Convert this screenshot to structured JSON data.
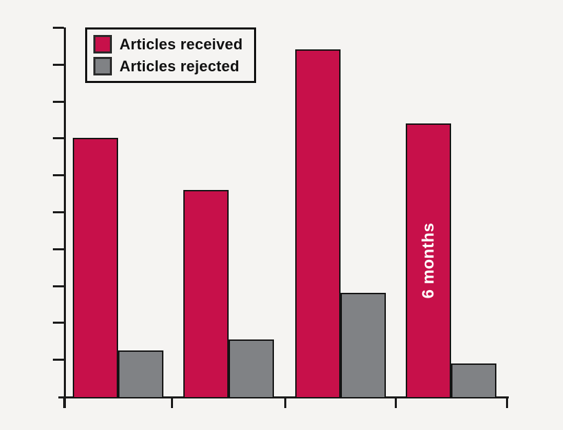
{
  "figure": {
    "background_color": "#f5f4f2",
    "axis_color": "#1a1a1a"
  },
  "chart_data": {
    "type": "bar",
    "title": "",
    "categories": [
      "",
      "",
      "",
      ""
    ],
    "series": [
      {
        "name": "Articles received",
        "color": "#c7104a",
        "values": [
          7.0,
          5.6,
          9.4,
          7.4
        ]
      },
      {
        "name": "Articles rejected",
        "color": "#808285",
        "values": [
          1.25,
          1.55,
          2.8,
          0.9
        ]
      }
    ],
    "y_axis": {
      "range_units": [
        0,
        10
      ],
      "tick_count": 10,
      "tick_labels_visible": false
    },
    "x_axis": {
      "tick_labels_visible": false,
      "group_boundary_tick_count": 5
    },
    "grid": "off",
    "legend_position": "top-left-inside",
    "annotation": {
      "text": "6 months",
      "series_index": 0,
      "group_index": 3,
      "color": "#ffffff",
      "rotation_deg": -90
    }
  }
}
